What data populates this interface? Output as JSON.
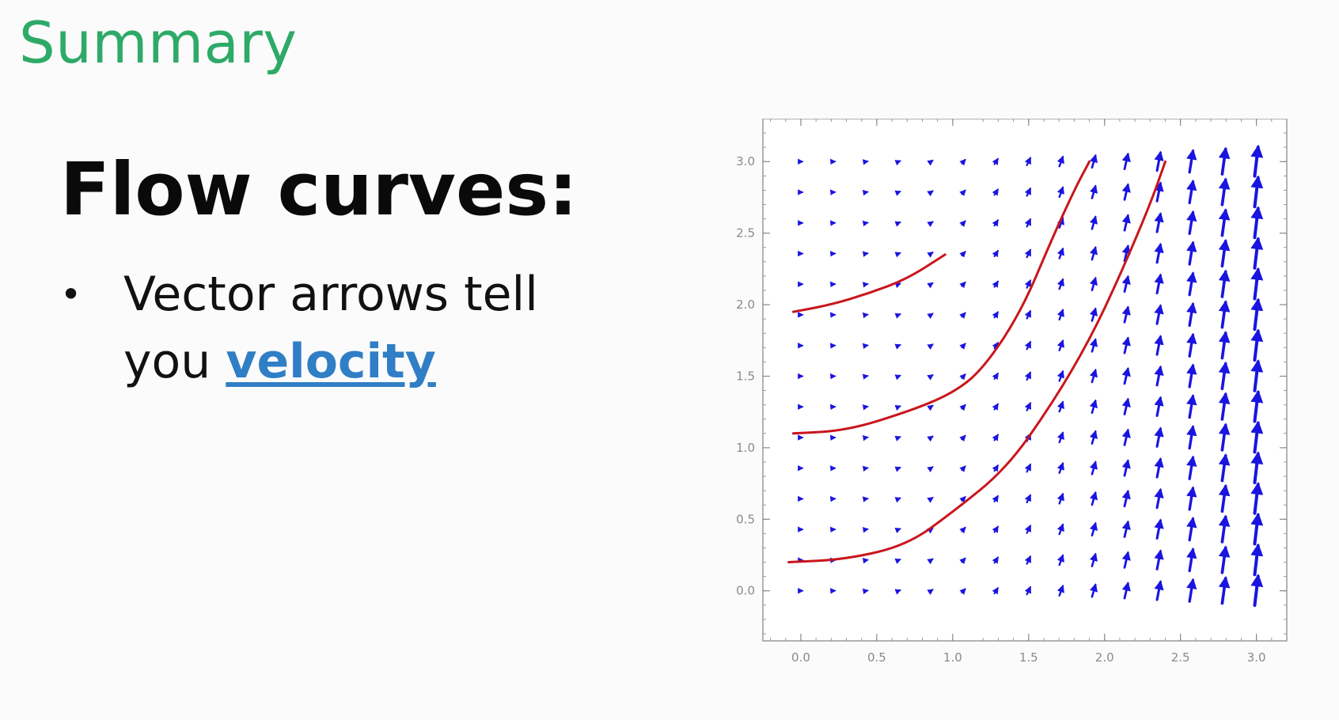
{
  "slide": {
    "title": "Summary",
    "heading": "Flow curves:",
    "bullet_marker": "•",
    "bullet_text_before": "Vector arrows tell you ",
    "bullet_highlight": "velocity"
  },
  "colors": {
    "title": "#2eaa68",
    "highlight": "#2f7ec6",
    "arrow": "#1a14e0",
    "curve": "#c8161c"
  },
  "chart_data": {
    "type": "vector_field",
    "title": "",
    "xlabel": "",
    "ylabel": "",
    "xlim": [
      -0.25,
      3.2
    ],
    "ylim": [
      -0.35,
      3.3
    ],
    "x_ticks": [
      "0.0",
      "0.5",
      "1.0",
      "1.5",
      "2.0",
      "2.5",
      "3.0"
    ],
    "y_ticks": [
      "0.0",
      "0.5",
      "1.0",
      "1.5",
      "2.0",
      "2.5",
      "3.0"
    ],
    "field_grid": {
      "x": [
        0,
        0.214,
        0.429,
        0.643,
        0.857,
        1.071,
        1.286,
        1.5,
        1.714,
        1.929,
        2.143,
        2.357,
        2.571,
        2.786,
        3.0
      ],
      "y": [
        0,
        0.214,
        0.429,
        0.643,
        0.857,
        1.071,
        1.286,
        1.5,
        1.714,
        1.929,
        2.143,
        2.357,
        2.571,
        2.786,
        3.0
      ],
      "field": "v = (1, x^2)"
    },
    "flow_curves": [
      {
        "name": "curve-1",
        "x": [
          -0.05,
          0.2,
          0.45,
          0.7,
          0.95
        ],
        "y": [
          1.95,
          2.0,
          2.08,
          2.18,
          2.35
        ]
      },
      {
        "name": "curve-2",
        "x": [
          -0.05,
          0.3,
          0.7,
          1.0,
          1.2,
          1.45,
          1.65,
          1.8,
          1.9
        ],
        "y": [
          1.1,
          1.12,
          1.25,
          1.38,
          1.55,
          1.95,
          2.45,
          2.8,
          3.0
        ]
      },
      {
        "name": "curve-3",
        "x": [
          -0.08,
          0.3,
          0.7,
          1.0,
          1.35,
          1.65,
          1.9,
          2.1,
          2.3,
          2.4
        ],
        "y": [
          0.2,
          0.22,
          0.32,
          0.55,
          0.85,
          1.3,
          1.75,
          2.2,
          2.7,
          3.0
        ]
      }
    ]
  }
}
